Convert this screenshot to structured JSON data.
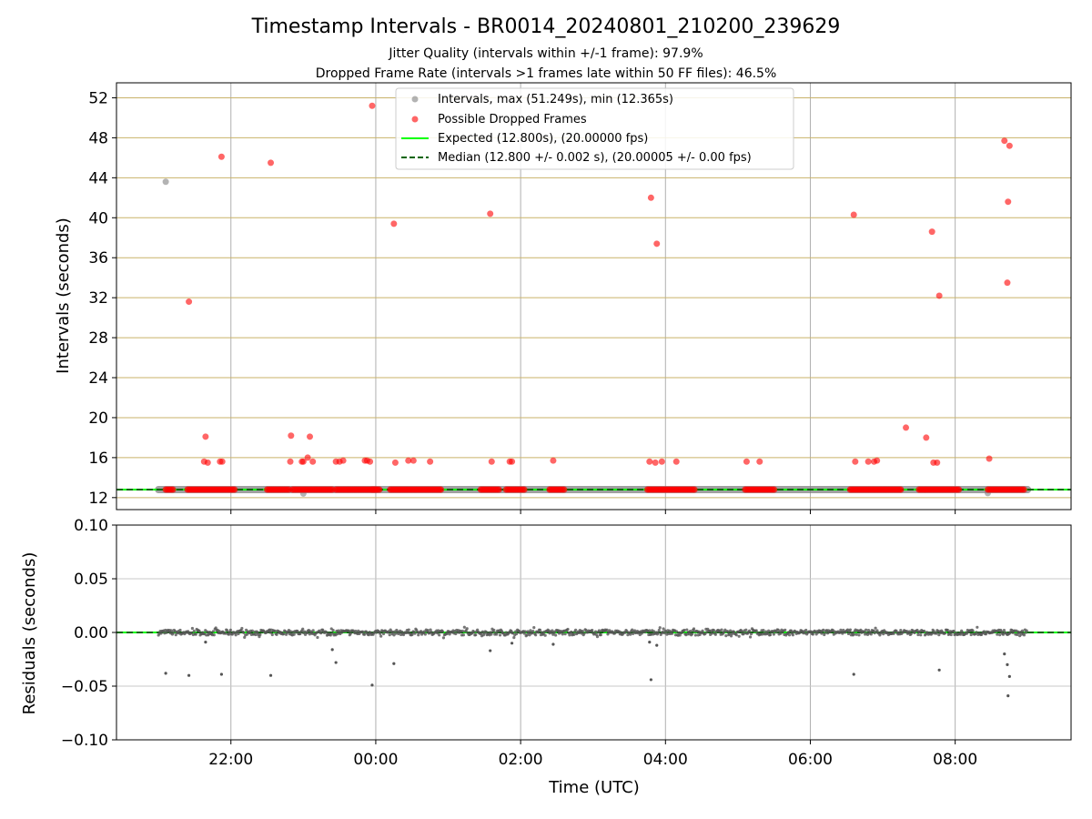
{
  "chart_data": [
    {
      "type": "scatter",
      "title": "Timestamp Intervals - BR0014_20240801_210200_239629",
      "subtitle_lines": [
        "Jitter Quality (intervals within +/-1 frame): 97.9%",
        "Dropped Frame Rate (intervals >1 frames late within 50 FF files): 46.5%"
      ],
      "ylabel": "Intervals (seconds)",
      "xlim_hours": [
        20.42,
        33.6
      ],
      "ylim": [
        10.8,
        53.5
      ],
      "yticks": [
        12,
        16,
        20,
        24,
        28,
        32,
        36,
        40,
        44,
        48,
        52
      ],
      "ytick_labels": [
        "12",
        "16",
        "20",
        "24",
        "28",
        "32",
        "36",
        "40",
        "44",
        "48",
        "52"
      ],
      "grid": "on (tan horizontal lines at y ticks, gray vertical lines at x ticks)",
      "legend_position": "top-center",
      "legend": [
        "Intervals, max (51.249s), min (12.365s)",
        "Possible Dropped Frames",
        "Expected (12.800s), (20.00000 fps)",
        "Median (12.800 +/- 0.002 s), (20.00005 +/- 0.00 fps)"
      ],
      "expected_interval": 12.8,
      "median_interval": 12.8,
      "baseline_x_range_hours": [
        21.0,
        33.0
      ],
      "series": [
        {
          "name": "Intervals, max (51.249s), min (12.365s)",
          "color": "#808080",
          "points": [
            [
              21.1,
              43.6
            ],
            [
              23.0,
              12.4
            ],
            [
              32.45,
              12.45
            ]
          ]
        },
        {
          "name": "Possible Dropped Frames",
          "color": "#ff0000",
          "points": [
            [
              21.42,
              31.6
            ],
            [
              21.65,
              18.1
            ],
            [
              21.63,
              15.6
            ],
            [
              21.68,
              15.5
            ],
            [
              21.87,
              46.1
            ],
            [
              21.85,
              15.6
            ],
            [
              21.88,
              15.6
            ],
            [
              22.55,
              45.5
            ],
            [
              22.83,
              18.2
            ],
            [
              22.82,
              15.6
            ],
            [
              22.98,
              15.6
            ],
            [
              23.0,
              15.6
            ],
            [
              23.06,
              16.0
            ],
            [
              23.09,
              18.1
            ],
            [
              23.13,
              15.6
            ],
            [
              23.45,
              15.6
            ],
            [
              23.5,
              15.6
            ],
            [
              23.55,
              15.7
            ],
            [
              23.85,
              15.7
            ],
            [
              23.88,
              15.7
            ],
            [
              23.92,
              15.6
            ],
            [
              23.95,
              51.2
            ],
            [
              24.25,
              39.4
            ],
            [
              24.27,
              15.5
            ],
            [
              24.45,
              15.7
            ],
            [
              24.52,
              15.7
            ],
            [
              24.75,
              15.6
            ],
            [
              25.58,
              40.4
            ],
            [
              25.6,
              15.6
            ],
            [
              25.85,
              15.6
            ],
            [
              25.88,
              15.6
            ],
            [
              26.45,
              15.7
            ],
            [
              27.78,
              15.6
            ],
            [
              27.8,
              42.0
            ],
            [
              27.86,
              15.5
            ],
            [
              27.88,
              37.4
            ],
            [
              27.95,
              15.6
            ],
            [
              28.15,
              15.6
            ],
            [
              29.12,
              15.6
            ],
            [
              29.3,
              15.6
            ],
            [
              30.6,
              40.3
            ],
            [
              30.62,
              15.6
            ],
            [
              30.8,
              15.6
            ],
            [
              30.88,
              15.6
            ],
            [
              30.92,
              15.7
            ],
            [
              31.32,
              19.0
            ],
            [
              31.6,
              18.0
            ],
            [
              31.68,
              38.6
            ],
            [
              31.7,
              15.5
            ],
            [
              31.75,
              15.5
            ],
            [
              31.78,
              32.2
            ],
            [
              32.47,
              15.9
            ],
            [
              32.68,
              47.7
            ],
            [
              32.72,
              33.5
            ],
            [
              32.73,
              41.6
            ],
            [
              32.75,
              47.2
            ]
          ],
          "dense_clusters_at_expected": [
            [
              21.1,
              21.2
            ],
            [
              21.4,
              22.05
            ],
            [
              22.5,
              22.8
            ],
            [
              22.85,
              23.4
            ],
            [
              23.45,
              24.0
            ],
            [
              23.95,
              24.05
            ],
            [
              24.2,
              24.9
            ],
            [
              25.45,
              25.72
            ],
            [
              25.8,
              26.05
            ],
            [
              26.4,
              26.62
            ],
            [
              27.75,
              28.4
            ],
            [
              29.1,
              29.5
            ],
            [
              30.55,
              31.25
            ],
            [
              31.5,
              32.05
            ],
            [
              32.45,
              32.95
            ]
          ]
        }
      ],
      "lines": [
        {
          "name": "Expected (12.800s), (20.00000 fps)",
          "color": "#00ff00",
          "style": "solid",
          "y": 12.8
        },
        {
          "name": "Median (12.800 +/- 0.002 s), (20.00005 +/- 0.00 fps)",
          "color": "#006400",
          "style": "dashed",
          "y": 12.8
        }
      ]
    },
    {
      "type": "scatter",
      "ylabel": "Residuals (seconds)",
      "xlabel": "Time (UTC)",
      "xlim_hours": [
        20.42,
        33.6
      ],
      "xticks_hours": [
        22,
        24,
        26,
        28,
        30,
        32
      ],
      "xtick_labels": [
        "22:00",
        "00:00",
        "02:00",
        "04:00",
        "06:00",
        "08:00"
      ],
      "ylim": [
        -0.1,
        0.1
      ],
      "yticks": [
        -0.1,
        -0.05,
        0.0,
        0.05,
        0.1
      ],
      "ytick_labels": [
        "−0.10",
        "−0.05",
        "0.00",
        "0.05",
        "0.10"
      ],
      "grid": "on (gray)",
      "zero_lines": [
        {
          "color": "#00ff00",
          "style": "solid",
          "y": 0
        },
        {
          "color": "#006400",
          "style": "dashed",
          "y": 0
        }
      ],
      "residual_color": "#555555",
      "residual_band_x_range_hours": [
        21.0,
        33.0
      ],
      "outliers": [
        [
          21.1,
          -0.038
        ],
        [
          21.42,
          -0.04
        ],
        [
          21.65,
          -0.009
        ],
        [
          21.87,
          -0.039
        ],
        [
          22.55,
          -0.04
        ],
        [
          23.4,
          -0.016
        ],
        [
          23.45,
          -0.028
        ],
        [
          23.95,
          -0.049
        ],
        [
          24.25,
          -0.029
        ],
        [
          25.58,
          -0.017
        ],
        [
          25.88,
          -0.01
        ],
        [
          26.45,
          -0.011
        ],
        [
          27.78,
          -0.009
        ],
        [
          27.8,
          -0.044
        ],
        [
          27.88,
          -0.012
        ],
        [
          30.6,
          -0.039
        ],
        [
          31.78,
          -0.035
        ],
        [
          32.68,
          -0.02
        ],
        [
          32.72,
          -0.03
        ],
        [
          32.75,
          -0.041
        ],
        [
          32.73,
          -0.059
        ]
      ]
    }
  ]
}
